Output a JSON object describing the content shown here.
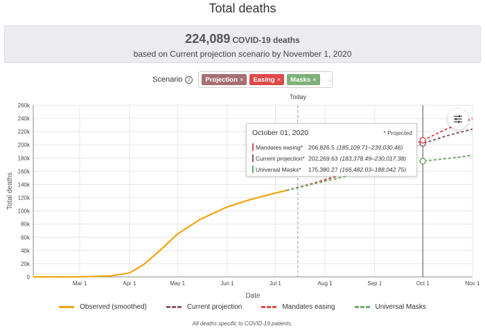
{
  "title": "Total deaths",
  "summary": {
    "count": "224,089",
    "unit": "COVID-19 deaths",
    "subtitle": "based on Current projection scenario by November 1, 2020"
  },
  "scenario": {
    "label": "Scenario",
    "info_icon": "info-icon",
    "chips": [
      {
        "label": "Projection",
        "color": "#a66f74"
      },
      {
        "label": "Easing",
        "color": "#e04848"
      },
      {
        "label": "Masks",
        "color": "#7fb07a"
      }
    ],
    "chip_remove_glyph": "×",
    "dropdown_glyph": "⌵"
  },
  "today_label": "Today",
  "settings_icon": "sliders-icon",
  "tooltip": {
    "date": "October 01, 2020",
    "projected_note": "* Projected",
    "rows": [
      {
        "name": "Mandates easing*",
        "value": "206,826.5",
        "ci": "(185,109.71–239,030.46)",
        "color": "#d94a4a"
      },
      {
        "name": "Current projection*",
        "value": "202,269.63",
        "ci": "(183,378.49–230,017.38)",
        "color": "#8a5a64"
      },
      {
        "name": "Universal Masks*",
        "value": "175,380.27",
        "ci": "(166,482.03–188,042.75)",
        "color": "#6fa86a"
      }
    ]
  },
  "legend": [
    {
      "label": "Observed (smoothed)",
      "color": "#f0a30a",
      "style": "solid"
    },
    {
      "label": "Current projection",
      "color": "#8a5a64",
      "style": "dashed"
    },
    {
      "label": "Mandates easing",
      "color": "#d94a4a",
      "style": "dashed"
    },
    {
      "label": "Universal Masks",
      "color": "#6fa86a",
      "style": "dashed"
    }
  ],
  "footnote": "All deaths specific to COVID-19 patients.",
  "chart_data": {
    "type": "line",
    "xlabel": "Date",
    "ylabel": "Total deaths",
    "ylim": [
      0,
      260000
    ],
    "yticks": [
      0,
      20000,
      40000,
      60000,
      80000,
      100000,
      120000,
      140000,
      160000,
      180000,
      200000,
      220000,
      240000,
      260000
    ],
    "ytick_labels": [
      "0",
      "20k",
      "40k",
      "60k",
      "80k",
      "100k",
      "120k",
      "140k",
      "160k",
      "180k",
      "200k",
      "220k",
      "240k",
      "260k"
    ],
    "xlim": [
      "2020-02-01",
      "2020-11-01"
    ],
    "xticks": [
      "2020-03-01",
      "2020-04-01",
      "2020-05-01",
      "2020-06-01",
      "2020-07-01",
      "2020-08-01",
      "2020-09-01",
      "2020-10-01",
      "2020-11-01"
    ],
    "xtick_labels": [
      "Mar 1",
      "Apr 1",
      "May 1",
      "Jun 1",
      "Jul 1",
      "Aug 1",
      "Sep 1",
      "Oct 1",
      "Nov 1"
    ],
    "grid": true,
    "today": "2020-07-15",
    "cursor": "2020-10-01",
    "series": [
      {
        "name": "Observed (smoothed)",
        "color": "#f0a30a",
        "style": "solid",
        "x": [
          "2020-02-01",
          "2020-03-01",
          "2020-03-20",
          "2020-04-01",
          "2020-04-10",
          "2020-04-20",
          "2020-05-01",
          "2020-05-15",
          "2020-06-01",
          "2020-06-15",
          "2020-07-01",
          "2020-07-08"
        ],
        "y": [
          0,
          100,
          1500,
          6000,
          19000,
          40000,
          65000,
          87000,
          106000,
          117000,
          127000,
          131000
        ]
      },
      {
        "name": "Current projection",
        "color": "#8a5a64",
        "style": "dashed",
        "x": [
          "2020-07-08",
          "2020-07-25",
          "2020-08-10",
          "2020-09-01",
          "2020-10-01",
          "2020-10-15",
          "2020-11-01"
        ],
        "y": [
          131000,
          142000,
          154000,
          172000,
          202269.63,
          213000,
          224089
        ]
      },
      {
        "name": "Mandates easing",
        "color": "#d94a4a",
        "style": "dashed",
        "x": [
          "2020-07-08",
          "2020-07-25",
          "2020-08-10",
          "2020-09-01",
          "2020-10-01",
          "2020-10-15",
          "2020-11-01"
        ],
        "y": [
          131000,
          142000,
          154000,
          173000,
          206826.5,
          223000,
          240000
        ]
      },
      {
        "name": "Universal Masks",
        "color": "#6fa86a",
        "style": "dashed",
        "x": [
          "2020-07-08",
          "2020-07-25",
          "2020-08-10",
          "2020-09-01",
          "2020-10-01",
          "2020-10-15",
          "2020-11-01"
        ],
        "y": [
          131000,
          141000,
          150000,
          163000,
          175380.27,
          179000,
          184000
        ]
      }
    ]
  }
}
